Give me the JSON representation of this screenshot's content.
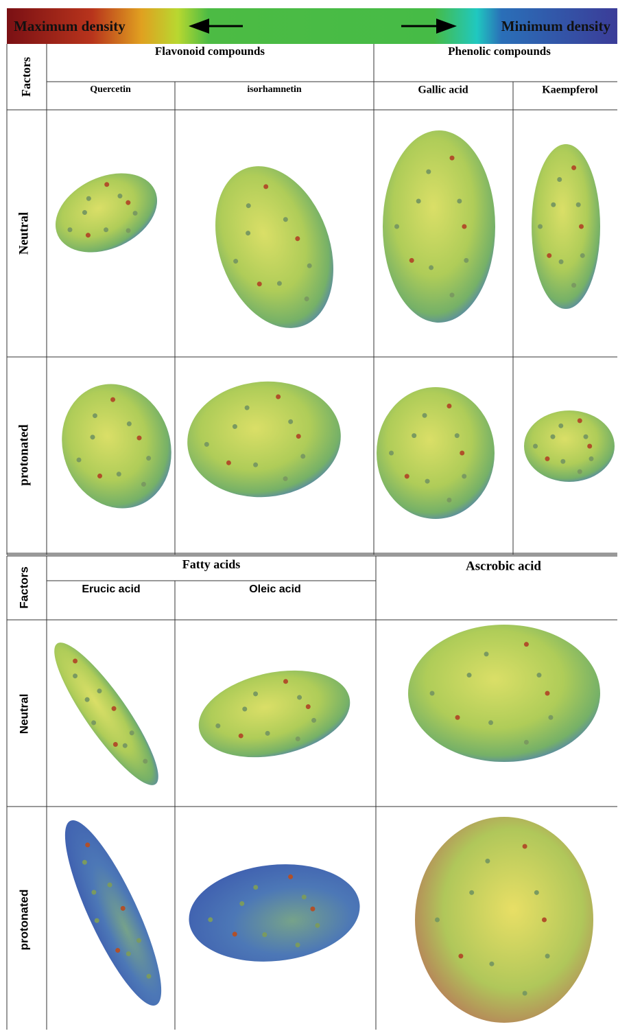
{
  "color_bar": {
    "left_label": "Maximum density",
    "right_label": "Minimum density"
  },
  "table1": {
    "corner": "Factors",
    "groups": [
      "Flavonoid compounds",
      "Phenolic compounds"
    ],
    "compounds": [
      "Quercetin",
      "isorhamnetin",
      "Gallic acid",
      "Kaempferol"
    ],
    "rows": [
      "Neutral",
      "protonated"
    ]
  },
  "table2": {
    "corner": "Factors",
    "groups": [
      "Fatty acids",
      "Ascrobic acid"
    ],
    "compounds": [
      "Erucic acid",
      "Oleic acid"
    ],
    "rows": [
      "Neutral",
      "protonated"
    ]
  }
}
